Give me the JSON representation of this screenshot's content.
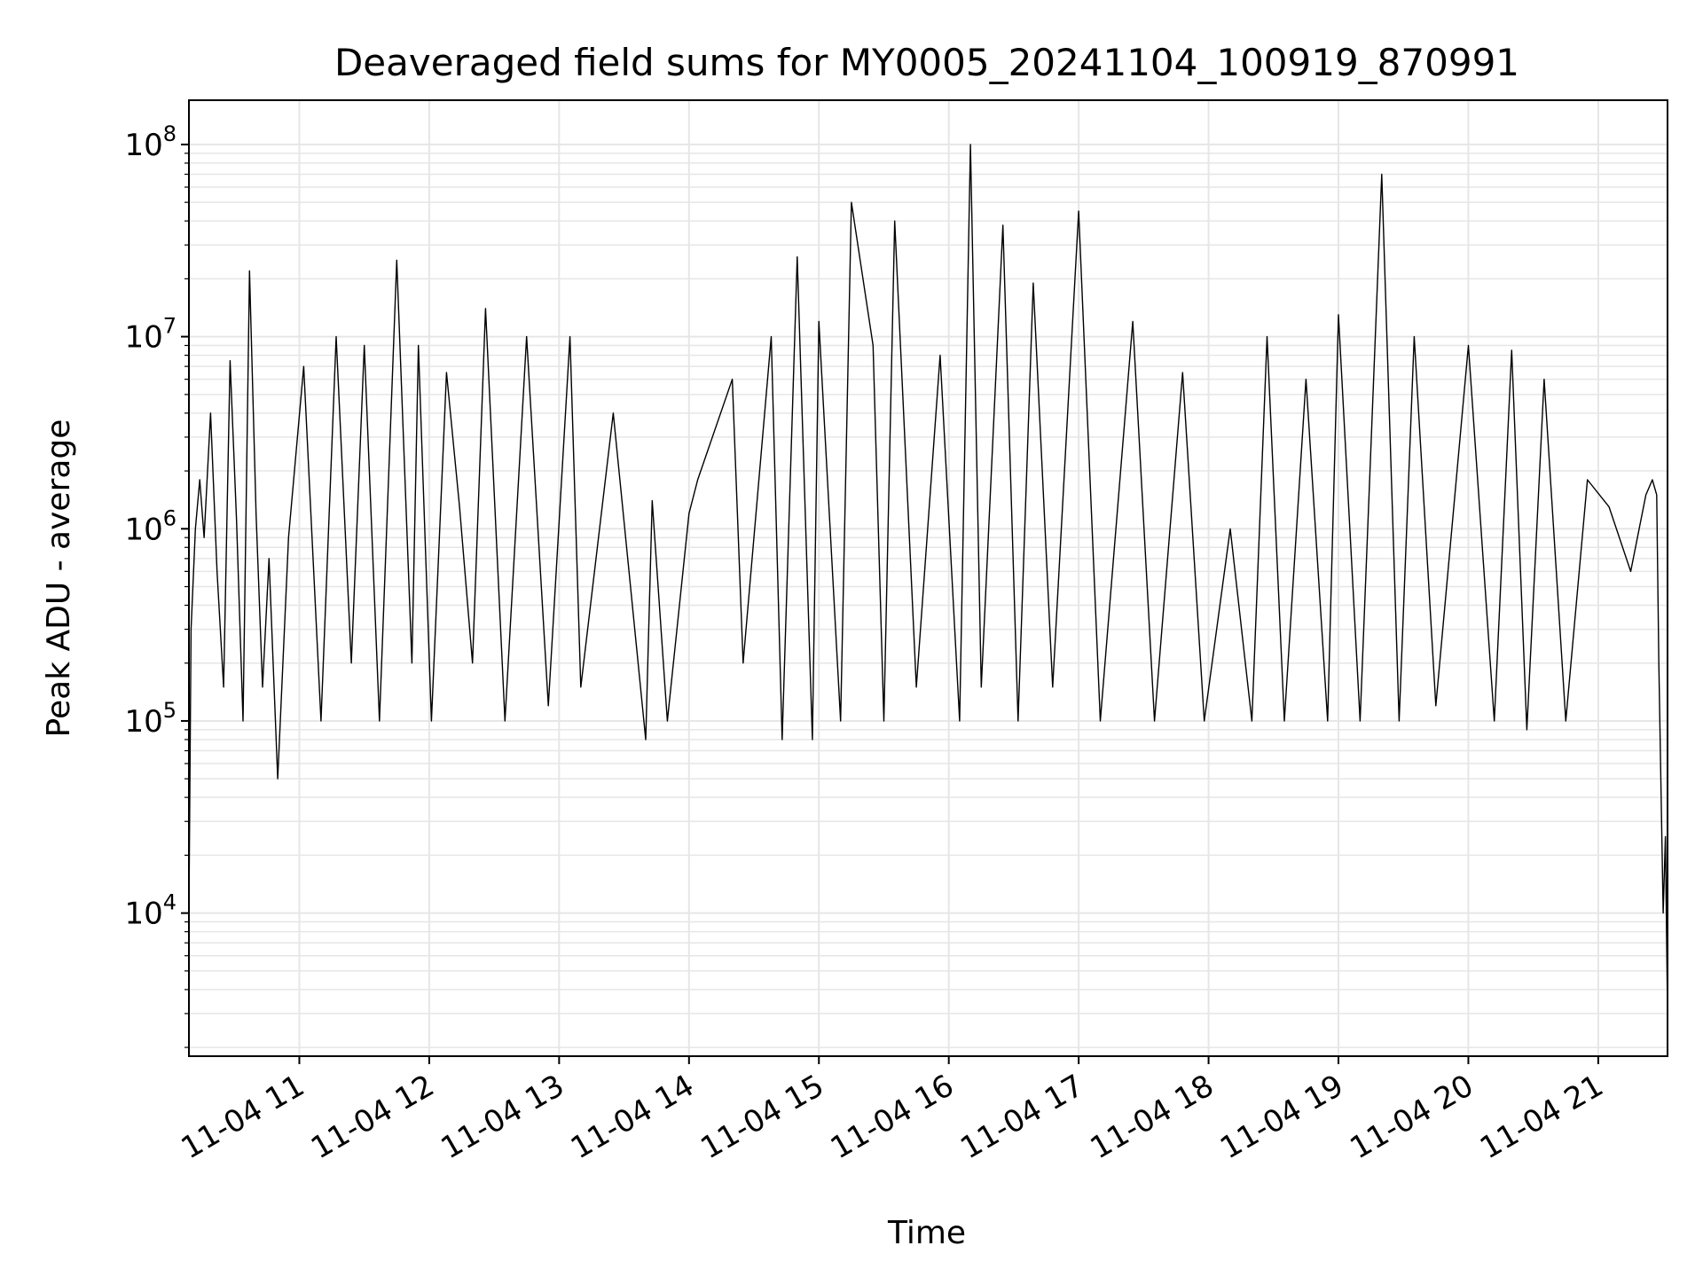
{
  "chart_data": {
    "type": "line",
    "title": "Deaveraged field sums for MY0005_20241104_100919_870991",
    "xlabel": "Time",
    "ylabel": "Peak ADU - average",
    "yscale": "log",
    "ylim": [
      1800,
      170000000
    ],
    "xlim": [
      "2024-11-04 10:09",
      "2024-11-04 21:32"
    ],
    "grid": true,
    "line_color": "#000000",
    "grid_color": "#e6e6e6",
    "x_ticks": [
      {
        "t": "2024-11-04 11:00",
        "label": "11-04 11"
      },
      {
        "t": "2024-11-04 12:00",
        "label": "11-04 12"
      },
      {
        "t": "2024-11-04 13:00",
        "label": "11-04 13"
      },
      {
        "t": "2024-11-04 14:00",
        "label": "11-04 14"
      },
      {
        "t": "2024-11-04 15:00",
        "label": "11-04 15"
      },
      {
        "t": "2024-11-04 16:00",
        "label": "11-04 16"
      },
      {
        "t": "2024-11-04 17:00",
        "label": "11-04 17"
      },
      {
        "t": "2024-11-04 18:00",
        "label": "11-04 18"
      },
      {
        "t": "2024-11-04 19:00",
        "label": "11-04 19"
      },
      {
        "t": "2024-11-04 20:00",
        "label": "11-04 20"
      },
      {
        "t": "2024-11-04 21:00",
        "label": "11-04 21"
      }
    ],
    "y_ticks": [
      {
        "value": 10000,
        "base": "10",
        "exp": "4"
      },
      {
        "value": 100000,
        "base": "10",
        "exp": "5"
      },
      {
        "value": 1000000,
        "base": "10",
        "exp": "6"
      },
      {
        "value": 10000000,
        "base": "10",
        "exp": "7"
      },
      {
        "value": 100000000,
        "base": "10",
        "exp": "8"
      }
    ],
    "series": [
      {
        "x": [
          "2024-11-04 10:09",
          "2024-11-04 10:10",
          "2024-11-04 10:12",
          "2024-11-04 10:14",
          "2024-11-04 10:16",
          "2024-11-04 10:19",
          "2024-11-04 10:22",
          "2024-11-04 10:25",
          "2024-11-04 10:28",
          "2024-11-04 10:31",
          "2024-11-04 10:34",
          "2024-11-04 10:37",
          "2024-11-04 10:40",
          "2024-11-04 10:43",
          "2024-11-04 10:46",
          "2024-11-04 10:50",
          "2024-11-04 10:55",
          "2024-11-04 11:02",
          "2024-11-04 11:10",
          "2024-11-04 11:17",
          "2024-11-04 11:24",
          "2024-11-04 11:30",
          "2024-11-04 11:37",
          "2024-11-04 11:45",
          "2024-11-04 11:52",
          "2024-11-04 11:55",
          "2024-11-04 12:01",
          "2024-11-04 12:08",
          "2024-11-04 12:14",
          "2024-11-04 12:20",
          "2024-11-04 12:26",
          "2024-11-04 12:35",
          "2024-11-04 12:45",
          "2024-11-04 12:55",
          "2024-11-04 13:05",
          "2024-11-04 13:10",
          "2024-11-04 13:25",
          "2024-11-04 13:40",
          "2024-11-04 13:43",
          "2024-11-04 13:50",
          "2024-11-04 14:00",
          "2024-11-04 14:04",
          "2024-11-04 14:20",
          "2024-11-04 14:25",
          "2024-11-04 14:38",
          "2024-11-04 14:43",
          "2024-11-04 14:50",
          "2024-11-04 14:57",
          "2024-11-04 15:00",
          "2024-11-04 15:10",
          "2024-11-04 15:15",
          "2024-11-04 15:25",
          "2024-11-04 15:30",
          "2024-11-04 15:35",
          "2024-11-04 15:45",
          "2024-11-04 15:56",
          "2024-11-04 16:05",
          "2024-11-04 16:10",
          "2024-11-04 16:15",
          "2024-11-04 16:25",
          "2024-11-04 16:32",
          "2024-11-04 16:39",
          "2024-11-04 16:48",
          "2024-11-04 17:00",
          "2024-11-04 17:10",
          "2024-11-04 17:25",
          "2024-11-04 17:35",
          "2024-11-04 17:48",
          "2024-11-04 17:58",
          "2024-11-04 18:10",
          "2024-11-04 18:20",
          "2024-11-04 18:27",
          "2024-11-04 18:35",
          "2024-11-04 18:45",
          "2024-11-04 18:55",
          "2024-11-04 19:00",
          "2024-11-04 19:10",
          "2024-11-04 19:20",
          "2024-11-04 19:28",
          "2024-11-04 19:35",
          "2024-11-04 19:45",
          "2024-11-04 20:00",
          "2024-11-04 20:12",
          "2024-11-04 20:20",
          "2024-11-04 20:27",
          "2024-11-04 20:35",
          "2024-11-04 20:45",
          "2024-11-04 20:55",
          "2024-11-04 21:05",
          "2024-11-04 21:15",
          "2024-11-04 21:22",
          "2024-11-04 21:25",
          "2024-11-04 21:27",
          "2024-11-04 21:28",
          "2024-11-04 21:30",
          "2024-11-04 21:31",
          "2024-11-04 21:32"
        ],
        "y": [
          10000,
          300000,
          1000000,
          1800000,
          900000,
          4000000,
          600000,
          150000,
          7500000,
          1100000,
          100000,
          22000000,
          1200000,
          150000,
          700000,
          50000,
          900000,
          7000000,
          100000,
          10000000,
          200000,
          9000000,
          100000,
          25000000,
          200000,
          9000000,
          100000,
          6500000,
          1300000,
          200000,
          14000000,
          100000,
          10000000,
          120000,
          10000000,
          150000,
          4000000,
          80000,
          1400000,
          100000,
          1200000,
          1800000,
          6000000,
          200000,
          10000000,
          80000,
          26000000,
          80000,
          12000000,
          100000,
          50000000,
          9000000,
          100000,
          40000000,
          150000,
          8000000,
          100000,
          100000000,
          150000,
          38000000,
          100000,
          19000000,
          150000,
          45000000,
          100000,
          12000000,
          100000,
          6500000,
          100000,
          1000000,
          100000,
          10000000,
          100000,
          6000000,
          100000,
          13000000,
          100000,
          70000000,
          100000,
          10000000,
          120000,
          9000000,
          100000,
          8500000,
          90000,
          6000000,
          100000,
          1800000,
          1300000,
          600000,
          1500000,
          1800000,
          1500000,
          200000,
          10000,
          25000,
          3000
        ]
      }
    ]
  }
}
